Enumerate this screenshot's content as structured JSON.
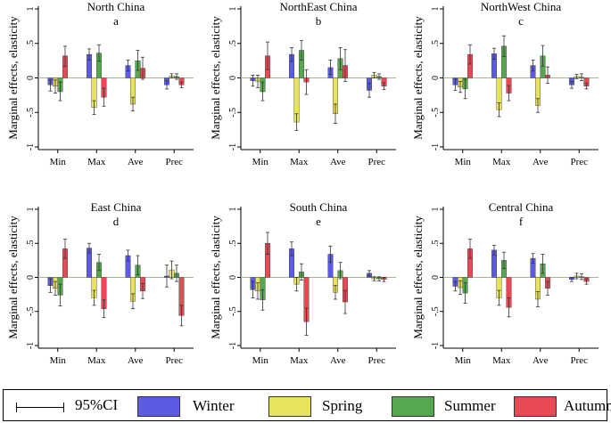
{
  "colors": {
    "Winter": "#5b5be6",
    "Spring": "#e8e35e",
    "Summer": "#55a84f",
    "Autumn": "#e84a55",
    "zero_line": "#9dc07a"
  },
  "legend": {
    "ci_label": "95%CI",
    "items": [
      {
        "name": "Winter",
        "color": "#5b5be6"
      },
      {
        "name": "Spring",
        "color": "#e8e35e"
      },
      {
        "name": "Summer",
        "color": "#55a84f"
      },
      {
        "name": "Autumn",
        "color": "#e84a55"
      }
    ]
  },
  "chart_data": [
    {
      "type": "bar",
      "title": "North China",
      "sublabel": "a",
      "ylabel": "Marginal effects, elasticity",
      "categories": [
        "Min",
        "Max",
        "Ave",
        "Prec"
      ],
      "ylim": [
        -1,
        1
      ],
      "yticks": [
        "1",
        ".5",
        "0",
        "-.5",
        "-1"
      ],
      "series": [
        {
          "name": "Winter",
          "values": [
            -0.1,
            0.34,
            0.18,
            -0.1
          ],
          "ci_low": [
            -0.19,
            0.26,
            0.1,
            -0.16
          ],
          "ci_high": [
            -0.03,
            0.42,
            0.26,
            -0.04
          ]
        },
        {
          "name": "Spring",
          "values": [
            -0.12,
            -0.43,
            -0.38,
            0.03
          ],
          "ci_low": [
            -0.22,
            -0.53,
            -0.48,
            0.0
          ],
          "ci_high": [
            -0.03,
            -0.33,
            -0.28,
            0.06
          ]
        },
        {
          "name": "Summer",
          "values": [
            -0.2,
            0.36,
            0.25,
            0.02
          ],
          "ci_low": [
            -0.33,
            0.24,
            0.11,
            -0.02
          ],
          "ci_high": [
            -0.06,
            0.48,
            0.4,
            0.06
          ]
        },
        {
          "name": "Autumn",
          "values": [
            0.32,
            -0.28,
            0.14,
            -0.1
          ],
          "ci_low": [
            0.17,
            -0.41,
            -0.02,
            -0.14
          ],
          "ci_high": [
            0.46,
            -0.15,
            0.3,
            -0.06
          ]
        }
      ]
    },
    {
      "type": "bar",
      "title": "NorthEast China",
      "sublabel": "b",
      "ylabel": "Marginal effects, elasticity",
      "categories": [
        "Min",
        "Max",
        "Ave",
        "Prec"
      ],
      "ylim": [
        -1,
        1
      ],
      "yticks": [
        "1",
        ".5",
        "0",
        "-.5",
        "-1"
      ],
      "series": [
        {
          "name": "Winter",
          "values": [
            -0.04,
            0.34,
            0.15,
            -0.18
          ],
          "ci_low": [
            -0.12,
            0.24,
            0.05,
            -0.28
          ],
          "ci_high": [
            0.04,
            0.44,
            0.26,
            -0.08
          ]
        },
        {
          "name": "Spring",
          "values": [
            -0.05,
            -0.64,
            -0.52,
            0.04
          ],
          "ci_low": [
            -0.14,
            -0.76,
            -0.66,
            0.0
          ],
          "ci_high": [
            0.04,
            -0.52,
            -0.38,
            0.08
          ]
        },
        {
          "name": "Summer",
          "values": [
            -0.2,
            0.4,
            0.28,
            0.02
          ],
          "ci_low": [
            -0.33,
            0.26,
            0.12,
            -0.02
          ],
          "ci_high": [
            -0.06,
            0.54,
            0.44,
            0.06
          ]
        },
        {
          "name": "Autumn",
          "values": [
            0.32,
            -0.06,
            0.18,
            -0.12
          ],
          "ci_low": [
            0.12,
            -0.24,
            -0.05,
            -0.17
          ],
          "ci_high": [
            0.52,
            0.12,
            0.41,
            -0.07
          ]
        }
      ]
    },
    {
      "type": "bar",
      "title": "NorthWest China",
      "sublabel": "c",
      "ylabel": "Marginal effects, elasticity",
      "categories": [
        "Min",
        "Max",
        "Ave",
        "Prec"
      ],
      "ylim": [
        -1,
        1
      ],
      "yticks": [
        "1",
        ".5",
        "0",
        "-.5",
        "-1"
      ],
      "series": [
        {
          "name": "Winter",
          "values": [
            -0.1,
            0.35,
            0.18,
            -0.1
          ],
          "ci_low": [
            -0.18,
            0.27,
            0.1,
            -0.15
          ],
          "ci_high": [
            -0.02,
            0.43,
            0.26,
            -0.05
          ]
        },
        {
          "name": "Spring",
          "values": [
            -0.13,
            -0.46,
            -0.4,
            0.02
          ],
          "ci_low": [
            -0.21,
            -0.56,
            -0.5,
            -0.01
          ],
          "ci_high": [
            -0.05,
            -0.36,
            -0.3,
            0.05
          ]
        },
        {
          "name": "Summer",
          "values": [
            -0.16,
            0.46,
            0.32,
            0.01
          ],
          "ci_low": [
            -0.3,
            0.31,
            0.17,
            -0.04
          ],
          "ci_high": [
            -0.02,
            0.61,
            0.47,
            0.06
          ]
        },
        {
          "name": "Autumn",
          "values": [
            0.34,
            -0.22,
            0.04,
            -0.12
          ],
          "ci_low": [
            0.2,
            -0.33,
            -0.08,
            -0.16
          ],
          "ci_high": [
            0.48,
            -0.11,
            0.16,
            -0.08
          ]
        }
      ]
    },
    {
      "type": "bar",
      "title": "East China",
      "sublabel": "d",
      "ylabel": "Marginal effects, elasticity",
      "categories": [
        "Min",
        "Max",
        "Ave",
        "Prec"
      ],
      "ylim": [
        -1,
        1
      ],
      "yticks": [
        "1",
        ".5",
        "0",
        "-.5",
        "-1"
      ],
      "series": [
        {
          "name": "Winter",
          "values": [
            -0.12,
            0.43,
            0.32,
            0.02
          ],
          "ci_low": [
            -0.22,
            0.36,
            0.24,
            -0.14
          ],
          "ci_high": [
            -0.02,
            0.5,
            0.4,
            0.18
          ]
        },
        {
          "name": "Spring",
          "values": [
            -0.16,
            -0.3,
            -0.35,
            0.11
          ],
          "ci_low": [
            -0.26,
            -0.41,
            -0.46,
            -0.02
          ],
          "ci_high": [
            -0.06,
            -0.19,
            -0.24,
            0.24
          ]
        },
        {
          "name": "Summer",
          "values": [
            -0.26,
            0.22,
            0.18,
            0.06
          ],
          "ci_low": [
            -0.42,
            0.1,
            0.04,
            -0.06
          ],
          "ci_high": [
            -0.1,
            0.34,
            0.32,
            0.18
          ]
        },
        {
          "name": "Autumn",
          "values": [
            0.42,
            -0.46,
            -0.2,
            -0.56
          ],
          "ci_low": [
            0.28,
            -0.59,
            -0.31,
            -0.71
          ],
          "ci_high": [
            0.56,
            -0.33,
            -0.09,
            -0.41
          ]
        }
      ]
    },
    {
      "type": "bar",
      "title": "South China",
      "sublabel": "e",
      "ylabel": "Marginal effects, elasticity",
      "categories": [
        "Min",
        "Max",
        "Ave",
        "Prec"
      ],
      "ylim": [
        -1,
        1
      ],
      "yticks": [
        "1",
        ".5",
        "0",
        "-.5",
        "-1"
      ],
      "series": [
        {
          "name": "Winter",
          "values": [
            -0.18,
            0.42,
            0.34,
            0.06
          ],
          "ci_low": [
            -0.3,
            0.32,
            0.22,
            0.02
          ],
          "ci_high": [
            -0.06,
            0.52,
            0.46,
            0.1
          ]
        },
        {
          "name": "Spring",
          "values": [
            -0.2,
            -0.1,
            -0.22,
            -0.02
          ],
          "ci_low": [
            -0.32,
            -0.2,
            -0.32,
            -0.05
          ],
          "ci_high": [
            -0.08,
            0.0,
            -0.12,
            0.01
          ]
        },
        {
          "name": "Summer",
          "values": [
            -0.33,
            0.08,
            0.1,
            -0.02
          ],
          "ci_low": [
            -0.48,
            -0.04,
            -0.02,
            -0.05
          ],
          "ci_high": [
            -0.18,
            0.2,
            0.22,
            0.01
          ]
        },
        {
          "name": "Autumn",
          "values": [
            0.5,
            -0.65,
            -0.36,
            -0.03
          ],
          "ci_low": [
            0.34,
            -0.85,
            -0.53,
            -0.06
          ],
          "ci_high": [
            0.66,
            -0.45,
            -0.19,
            0.0
          ]
        }
      ]
    },
    {
      "type": "bar",
      "title": "Central China",
      "sublabel": "f",
      "ylabel": "Marginal effects, elasticity",
      "categories": [
        "Min",
        "Max",
        "Ave",
        "Prec"
      ],
      "ylim": [
        -1,
        1
      ],
      "yticks": [
        "1",
        ".5",
        "0",
        "-.5",
        "-1"
      ],
      "series": [
        {
          "name": "Winter",
          "values": [
            -0.13,
            0.4,
            0.28,
            -0.03
          ],
          "ci_low": [
            -0.2,
            0.33,
            0.21,
            -0.06
          ],
          "ci_high": [
            -0.06,
            0.47,
            0.35,
            0.0
          ]
        },
        {
          "name": "Spring",
          "values": [
            -0.15,
            -0.3,
            -0.32,
            0.02
          ],
          "ci_low": [
            -0.25,
            -0.41,
            -0.43,
            -0.02
          ],
          "ci_high": [
            -0.05,
            -0.19,
            -0.21,
            0.06
          ]
        },
        {
          "name": "Summer",
          "values": [
            -0.23,
            0.25,
            0.2,
            0.01
          ],
          "ci_low": [
            -0.38,
            0.13,
            0.06,
            -0.03
          ],
          "ci_high": [
            -0.08,
            0.37,
            0.34,
            0.05
          ]
        },
        {
          "name": "Autumn",
          "values": [
            0.42,
            -0.44,
            -0.16,
            -0.06
          ],
          "ci_low": [
            0.28,
            -0.58,
            -0.26,
            -0.1
          ],
          "ci_high": [
            0.56,
            -0.3,
            -0.06,
            -0.02
          ]
        }
      ]
    }
  ]
}
